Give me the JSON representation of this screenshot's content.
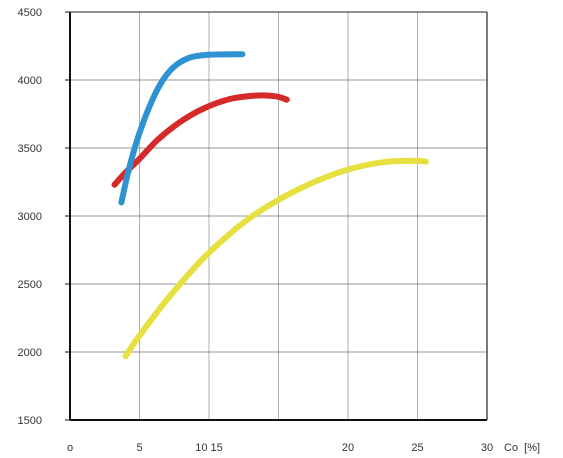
{
  "chart_data": {
    "type": "line",
    "title": "",
    "xlabel": "Co  [%]",
    "ylabel": "",
    "xlim": [
      0,
      30
    ],
    "ylim": [
      1500,
      4500
    ],
    "grid": true,
    "x_gridlines": [
      5,
      10,
      15,
      20,
      25
    ],
    "y_gridlines": [
      2000,
      2500,
      3000,
      3500,
      4000
    ],
    "x_ticks": [
      {
        "value": 0,
        "label": "o"
      },
      {
        "value": 5,
        "label": "5"
      },
      {
        "value": 10,
        "label": "10 15"
      },
      {
        "value": 20,
        "label": "20"
      },
      {
        "value": 25,
        "label": "25"
      },
      {
        "value": 30,
        "label": "30"
      }
    ],
    "y_ticks": [
      {
        "value": 1500,
        "label": "1500"
      },
      {
        "value": 2000,
        "label": "2000"
      },
      {
        "value": 2500,
        "label": "2500"
      },
      {
        "value": 3000,
        "label": "3000"
      },
      {
        "value": 3500,
        "label": "3500"
      },
      {
        "value": 4000,
        "label": "4000"
      },
      {
        "value": 4500,
        "label": "4500"
      }
    ],
    "series": [
      {
        "color": "#2e93d1",
        "points": [
          [
            3.7,
            3100
          ],
          [
            4.2,
            3330
          ],
          [
            4.9,
            3580
          ],
          [
            5.7,
            3800
          ],
          [
            6.5,
            3970
          ],
          [
            7.4,
            4090
          ],
          [
            8.5,
            4160
          ],
          [
            9.9,
            4185
          ],
          [
            12.4,
            4190
          ]
        ]
      },
      {
        "color": "#d42a2a",
        "points": [
          [
            3.2,
            3230
          ],
          [
            4.0,
            3320
          ],
          [
            5.0,
            3420
          ],
          [
            6.3,
            3560
          ],
          [
            7.9,
            3690
          ],
          [
            9.6,
            3790
          ],
          [
            11.5,
            3860
          ],
          [
            13.3,
            3885
          ],
          [
            14.8,
            3880
          ],
          [
            15.6,
            3855
          ]
        ]
      },
      {
        "color": "#e6e040",
        "points": [
          [
            4.0,
            1970
          ],
          [
            5.0,
            2120
          ],
          [
            7.1,
            2400
          ],
          [
            9.7,
            2700
          ],
          [
            12.6,
            2960
          ],
          [
            15.2,
            3130
          ],
          [
            17.8,
            3260
          ],
          [
            20.3,
            3350
          ],
          [
            22.9,
            3400
          ],
          [
            24.9,
            3405
          ],
          [
            25.6,
            3400
          ]
        ]
      }
    ]
  }
}
